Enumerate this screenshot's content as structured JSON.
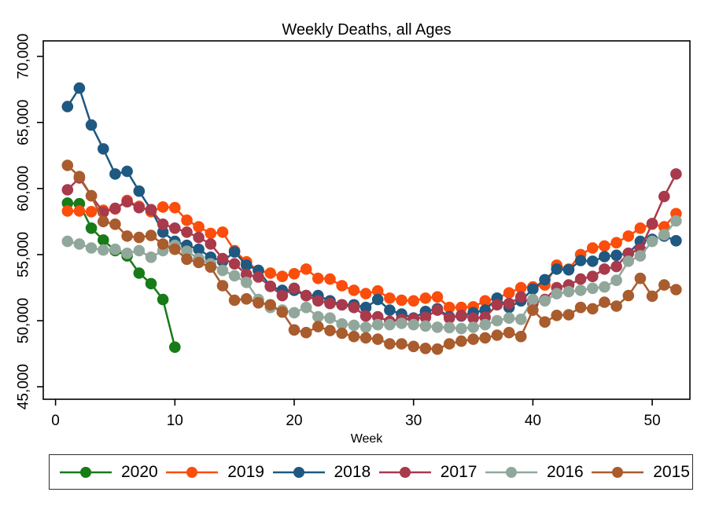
{
  "chart_data": {
    "type": "line",
    "title": "Weekly Deaths, all Ages",
    "xlabel": "Week",
    "ylabel": "",
    "x_ticks": [
      0,
      10,
      20,
      30,
      40,
      50
    ],
    "y_ticks": [
      45000,
      50000,
      55000,
      60000,
      65000,
      70000
    ],
    "y_tick_labels": [
      "45,000",
      "50,000",
      "55,000",
      "60,000",
      "65,000",
      "70,000"
    ],
    "xlim": [
      0,
      53.2
    ],
    "ylim": [
      44000,
      71200
    ],
    "grid": false,
    "legend_position": "bottom",
    "marker": "circle",
    "series": [
      {
        "name": "2020",
        "color": "#177b17",
        "weeks": [
          1,
          2,
          3,
          4,
          5,
          6,
          7,
          8,
          9,
          10
        ],
        "values": [
          58900,
          58850,
          57000,
          56100,
          55300,
          54900,
          53600,
          52800,
          51600,
          48000
        ]
      },
      {
        "name": "2019",
        "color": "#fb4d0c",
        "weeks": [
          1,
          2,
          3,
          4,
          5,
          6,
          7,
          8,
          9,
          10,
          11,
          12,
          13,
          14,
          15,
          16,
          17,
          18,
          19,
          20,
          21,
          22,
          23,
          24,
          25,
          26,
          27,
          28,
          29,
          30,
          31,
          32,
          33,
          34,
          35,
          36,
          37,
          38,
          39,
          40,
          41,
          42,
          43,
          44,
          45,
          46,
          47,
          48,
          49,
          50,
          51,
          52
        ],
        "values": [
          58300,
          58300,
          58250,
          58350,
          58450,
          59100,
          58650,
          58250,
          58600,
          58550,
          57600,
          57100,
          56600,
          56700,
          55300,
          54450,
          53800,
          53600,
          53350,
          53550,
          53900,
          53200,
          53150,
          52650,
          52300,
          52050,
          52250,
          51700,
          51550,
          51500,
          51700,
          51800,
          51000,
          51000,
          51050,
          51500,
          51700,
          52100,
          52500,
          52550,
          52700,
          54200,
          53900,
          55000,
          55500,
          55650,
          55900,
          56400,
          57000,
          57300,
          57100,
          58100
        ]
      },
      {
        "name": "2018",
        "color": "#1f5880",
        "weeks": [
          1,
          2,
          3,
          4,
          5,
          6,
          7,
          8,
          9,
          10,
          11,
          12,
          13,
          14,
          15,
          16,
          17,
          18,
          19,
          20,
          21,
          22,
          23,
          24,
          25,
          26,
          27,
          28,
          29,
          30,
          31,
          32,
          33,
          34,
          35,
          36,
          37,
          38,
          39,
          40,
          41,
          42,
          43,
          44,
          45,
          46,
          47,
          48,
          49,
          50,
          51,
          52
        ],
        "values": [
          66200,
          67600,
          64800,
          63000,
          61100,
          61300,
          59800,
          58400,
          56700,
          56000,
          55700,
          55400,
          54800,
          54500,
          55200,
          54200,
          53800,
          52600,
          52300,
          52300,
          51900,
          51900,
          51500,
          51200,
          51200,
          51000,
          51600,
          50800,
          50500,
          50200,
          50700,
          50900,
          50300,
          50350,
          50600,
          50800,
          51700,
          51000,
          51500,
          52400,
          53100,
          53900,
          53850,
          54550,
          54500,
          54850,
          54950,
          55100,
          56000,
          56150,
          56400,
          56050
        ]
      },
      {
        "name": "2017",
        "color": "#a83a4c",
        "weeks": [
          1,
          2,
          3,
          4,
          5,
          6,
          7,
          8,
          9,
          10,
          11,
          12,
          13,
          14,
          15,
          16,
          17,
          18,
          19,
          20,
          21,
          22,
          23,
          24,
          25,
          26,
          27,
          28,
          29,
          30,
          31,
          32,
          33,
          34,
          35,
          36,
          37,
          38,
          39,
          40,
          41,
          42,
          43,
          44,
          45,
          46,
          47,
          48,
          49,
          50,
          51,
          52
        ],
        "values": [
          59900,
          60800,
          59450,
          58200,
          58500,
          59000,
          58550,
          58400,
          57300,
          57000,
          56700,
          56300,
          55800,
          54700,
          54300,
          53500,
          53300,
          52600,
          51900,
          52450,
          51900,
          51500,
          51300,
          51200,
          51000,
          50350,
          50300,
          49950,
          50100,
          50150,
          50250,
          50800,
          50200,
          50400,
          50200,
          50250,
          51200,
          51300,
          51800,
          51300,
          51600,
          52500,
          52700,
          53150,
          53350,
          53900,
          54100,
          55100,
          55400,
          57350,
          59400,
          61100
        ]
      },
      {
        "name": "2016",
        "color": "#92a79c",
        "weeks": [
          1,
          2,
          3,
          4,
          5,
          6,
          7,
          8,
          9,
          10,
          11,
          12,
          13,
          14,
          15,
          16,
          17,
          18,
          19,
          20,
          21,
          22,
          23,
          24,
          25,
          26,
          27,
          28,
          29,
          30,
          31,
          32,
          33,
          34,
          35,
          36,
          37,
          38,
          39,
          40,
          41,
          42,
          43,
          44,
          45,
          46,
          47,
          48,
          49,
          50,
          51,
          52
        ],
        "values": [
          56000,
          55800,
          55500,
          55350,
          55400,
          55100,
          55300,
          54800,
          55300,
          55700,
          55250,
          54700,
          54300,
          53800,
          53400,
          52900,
          51600,
          51000,
          50800,
          50600,
          51000,
          50300,
          50200,
          49750,
          49650,
          49500,
          49700,
          49700,
          49800,
          49700,
          49600,
          49500,
          49480,
          49400,
          49500,
          49700,
          50000,
          50200,
          50100,
          51600,
          51500,
          52040,
          52200,
          52300,
          52450,
          52550,
          53050,
          54500,
          54900,
          56000,
          56500,
          57550
        ]
      },
      {
        "name": "2015",
        "color": "#a95c2d",
        "weeks": [
          1,
          2,
          3,
          4,
          5,
          6,
          7,
          8,
          9,
          10,
          11,
          12,
          13,
          14,
          15,
          16,
          17,
          18,
          19,
          20,
          21,
          22,
          23,
          24,
          25,
          26,
          27,
          28,
          29,
          30,
          31,
          32,
          33,
          34,
          35,
          36,
          37,
          38,
          39,
          40,
          41,
          42,
          43,
          44,
          45,
          46,
          47,
          48,
          49,
          50,
          51,
          52
        ],
        "values": [
          61750,
          60900,
          59450,
          57500,
          57300,
          56400,
          56300,
          56450,
          55800,
          55400,
          54650,
          54400,
          54050,
          52650,
          51550,
          51650,
          51350,
          51200,
          50650,
          49300,
          49100,
          49550,
          49250,
          49050,
          48800,
          48700,
          48600,
          48250,
          48250,
          48050,
          47900,
          47850,
          48250,
          48450,
          48600,
          48700,
          48900,
          49100,
          48800,
          50800,
          49900,
          50400,
          50450,
          51000,
          50900,
          51400,
          51100,
          51900,
          53200,
          51850,
          52700,
          52350
        ]
      }
    ]
  },
  "legend": {
    "items": [
      {
        "label": "2020",
        "color": "#177b17"
      },
      {
        "label": "2019",
        "color": "#fb4d0c"
      },
      {
        "label": "2018",
        "color": "#1f5880"
      },
      {
        "label": "2017",
        "color": "#a83a4c"
      },
      {
        "label": "2016",
        "color": "#92a79c"
      },
      {
        "label": "2015",
        "color": "#a95c2d"
      }
    ]
  }
}
